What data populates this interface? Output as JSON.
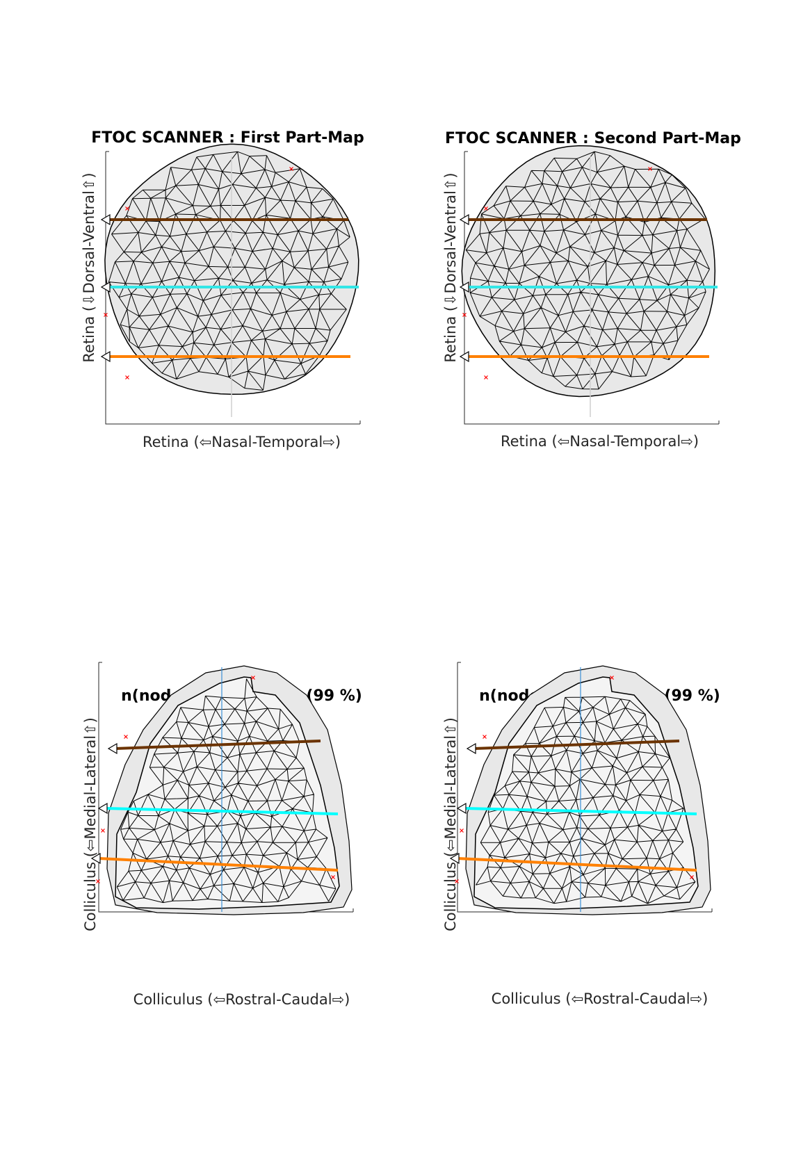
{
  "panels": [
    {
      "id": "retina-first",
      "title": "FTOC SCANNER : First Part-Map",
      "xlabel": "Retina (⇦Nasal-Temporal⇨)",
      "ylabel": "Retina (⇩Dorsal-Ventral⇧)",
      "shape": "disk",
      "scan_lines": [
        "#6b3300",
        "#33e6e6",
        "#ff8000"
      ]
    },
    {
      "id": "retina-second",
      "title": "FTOC SCANNER : Second Part-Map",
      "xlabel": "Retina (⇦Nasal-Temporal⇨)",
      "ylabel": "Retina (⇩Dorsal-Ventral⇧)",
      "shape": "disk",
      "scan_lines": [
        "#6b3300",
        "#33e6e6",
        "#ff8000"
      ]
    },
    {
      "id": "colliculus-first",
      "title": "n(nodes): 473 of 478 (99 %)",
      "xlabel": "Colliculus (⇦Rostral-Caudal⇨)",
      "ylabel": "Colliculus (⇦Medial-Lateral⇧)",
      "shape": "colliculus",
      "scan_lines": [
        "#6b3300",
        "#00ffff",
        "#ff8000"
      ]
    },
    {
      "id": "colliculus-second",
      "title": "n(nodes): 473 of 478 (99 %)",
      "xlabel": "Colliculus (⇦Rostral-Caudal⇨)",
      "ylabel": "Colliculus (⇦Medial-Lateral⇧)",
      "shape": "colliculus",
      "scan_lines": [
        "#6b3300",
        "#00ffff",
        "#ff8000"
      ]
    }
  ],
  "colors": {
    "mesh": "#000000",
    "marker": "#ff0000",
    "guide_line": "#3b8fd6",
    "background_fill": "#e8e8e8"
  }
}
